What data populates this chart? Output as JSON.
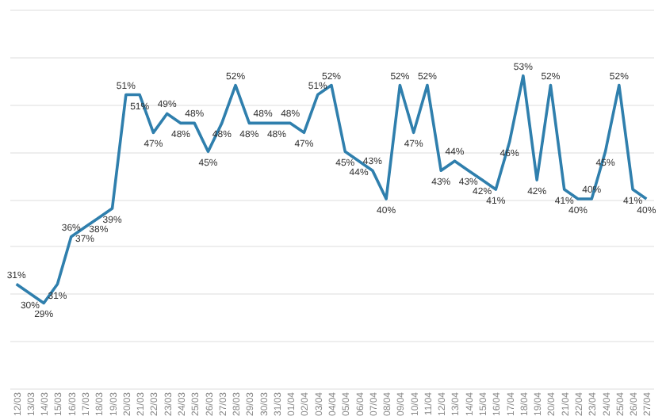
{
  "chart_data": {
    "type": "line",
    "categories": [
      "12/03",
      "13/03",
      "14/03",
      "15/03",
      "16/03",
      "17/03",
      "18/03",
      "19/03",
      "20/03",
      "21/03",
      "22/03",
      "23/03",
      "24/03",
      "25/03",
      "26/03",
      "27/03",
      "28/03",
      "29/03",
      "30/03",
      "31/03",
      "01/04",
      "02/04",
      "03/04",
      "04/04",
      "05/04",
      "06/04",
      "07/04",
      "08/04",
      "09/04",
      "10/04",
      "11/04",
      "12/04",
      "13/04",
      "14/04",
      "15/04",
      "16/04",
      "17/04",
      "18/04",
      "19/04",
      "20/04",
      "21/04",
      "22/04",
      "23/04",
      "24/04",
      "25/04",
      "26/04",
      "27/04"
    ],
    "series": [
      {
        "color": "#2f7fad",
        "values": [
          31,
          30,
          29,
          31,
          36,
          37,
          38,
          39,
          51,
          51,
          47,
          49,
          48,
          48,
          45,
          48,
          52,
          48,
          48,
          48,
          48,
          47,
          51,
          52,
          45,
          44,
          43,
          40,
          52,
          47,
          52,
          43,
          44,
          43,
          42,
          41,
          46,
          53,
          42,
          52,
          41,
          40,
          40,
          45,
          52,
          41,
          40
        ],
        "value_labels": [
          "31%",
          "30%",
          "29%",
          "31%",
          "36%",
          "37%",
          "38%",
          "39%",
          "51%",
          "51%",
          "47%",
          "49%",
          "48%",
          "48%",
          "45%",
          "48%",
          "52%",
          "48%",
          "48%",
          "48%",
          "48%",
          "47%",
          "51%",
          "52%",
          "45%",
          "44%",
          "43%",
          "40%",
          "52%",
          "47%",
          "52%",
          "43%",
          "44%",
          "43%",
          "42%",
          "41%",
          "46%",
          "53%",
          "42%",
          "52%",
          "41%",
          "40%",
          "40%",
          "45%",
          "52%",
          "41%",
          "40%"
        ]
      }
    ],
    "tick_labels": "x",
    "grid": "y",
    "marker": "none",
    "line_style": "solid"
  }
}
